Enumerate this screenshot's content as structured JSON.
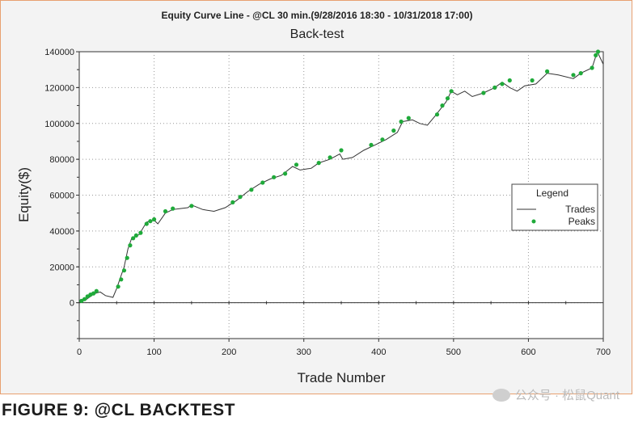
{
  "chart_data": {
    "type": "line",
    "title": "Equity Curve Line - @CL 30 min.(9/28/2016 18:30 - 10/31/2018 17:00)",
    "subtitle": "Back-test",
    "xlabel": "Trade Number",
    "ylabel": "Equity($)",
    "xlim": [
      0,
      700
    ],
    "ylim": [
      -20000,
      140000
    ],
    "x_ticks": [
      "0",
      "100",
      "200",
      "300",
      "400",
      "500",
      "600",
      "700"
    ],
    "y_ticks": [
      "0",
      "20000",
      "40000",
      "60000",
      "80000",
      "100000",
      "120000",
      "140000"
    ],
    "grid": true,
    "legend": {
      "title": "Legend",
      "placement": "right",
      "entries": [
        "Trades",
        "Peaks"
      ]
    },
    "colors": {
      "trades": "#333333",
      "peaks": "#1faa3a"
    },
    "series": [
      {
        "name": "Trades",
        "points": [
          [
            0,
            0
          ],
          [
            10,
            2000
          ],
          [
            20,
            5000
          ],
          [
            28,
            6000
          ],
          [
            35,
            4000
          ],
          [
            45,
            3000
          ],
          [
            50,
            8000
          ],
          [
            55,
            14000
          ],
          [
            60,
            20000
          ],
          [
            65,
            30000
          ],
          [
            70,
            36000
          ],
          [
            80,
            38000
          ],
          [
            90,
            45000
          ],
          [
            100,
            46000
          ],
          [
            105,
            44000
          ],
          [
            115,
            50000
          ],
          [
            125,
            52000
          ],
          [
            135,
            52500
          ],
          [
            145,
            53000
          ],
          [
            150,
            54500
          ],
          [
            165,
            52000
          ],
          [
            180,
            51000
          ],
          [
            195,
            53000
          ],
          [
            210,
            57000
          ],
          [
            225,
            62000
          ],
          [
            240,
            66000
          ],
          [
            255,
            69000
          ],
          [
            270,
            71000
          ],
          [
            285,
            76000
          ],
          [
            295,
            74000
          ],
          [
            310,
            75000
          ],
          [
            320,
            78000
          ],
          [
            335,
            80000
          ],
          [
            348,
            83000
          ],
          [
            352,
            80000
          ],
          [
            365,
            81000
          ],
          [
            380,
            85000
          ],
          [
            395,
            88000
          ],
          [
            410,
            91000
          ],
          [
            425,
            95000
          ],
          [
            432,
            101000
          ],
          [
            445,
            102000
          ],
          [
            455,
            100000
          ],
          [
            465,
            99000
          ],
          [
            475,
            104000
          ],
          [
            490,
            112000
          ],
          [
            497,
            118000
          ],
          [
            505,
            116000
          ],
          [
            515,
            118000
          ],
          [
            525,
            115000
          ],
          [
            540,
            117000
          ],
          [
            555,
            120000
          ],
          [
            565,
            123000
          ],
          [
            575,
            120000
          ],
          [
            585,
            118000
          ],
          [
            595,
            121000
          ],
          [
            610,
            122000
          ],
          [
            625,
            128000
          ],
          [
            640,
            127000
          ],
          [
            660,
            125000
          ],
          [
            670,
            128000
          ],
          [
            685,
            131000
          ],
          [
            692,
            140000
          ],
          [
            700,
            133000
          ]
        ]
      },
      {
        "name": "Peaks",
        "points": [
          [
            3,
            1000
          ],
          [
            7,
            2000
          ],
          [
            11,
            3500
          ],
          [
            15,
            4500
          ],
          [
            19,
            5200
          ],
          [
            23,
            6500
          ],
          [
            52,
            9000
          ],
          [
            56,
            13000
          ],
          [
            60,
            18000
          ],
          [
            64,
            25000
          ],
          [
            68,
            32000
          ],
          [
            72,
            36000
          ],
          [
            76,
            37500
          ],
          [
            82,
            39000
          ],
          [
            90,
            44000
          ],
          [
            95,
            45500
          ],
          [
            100,
            46500
          ],
          [
            115,
            51000
          ],
          [
            125,
            52500
          ],
          [
            150,
            54000
          ],
          [
            205,
            56000
          ],
          [
            215,
            59000
          ],
          [
            230,
            63000
          ],
          [
            245,
            67000
          ],
          [
            260,
            70000
          ],
          [
            275,
            72000
          ],
          [
            290,
            77000
          ],
          [
            320,
            78000
          ],
          [
            335,
            81000
          ],
          [
            350,
            85000
          ],
          [
            390,
            88000
          ],
          [
            405,
            91000
          ],
          [
            420,
            96000
          ],
          [
            430,
            101000
          ],
          [
            440,
            103000
          ],
          [
            478,
            105000
          ],
          [
            485,
            110000
          ],
          [
            492,
            114000
          ],
          [
            497,
            118000
          ],
          [
            540,
            117000
          ],
          [
            555,
            120000
          ],
          [
            565,
            122000
          ],
          [
            575,
            124000
          ],
          [
            605,
            124000
          ],
          [
            625,
            129000
          ],
          [
            660,
            127000
          ],
          [
            670,
            128000
          ],
          [
            685,
            131000
          ],
          [
            690,
            138000
          ],
          [
            693,
            140000
          ]
        ]
      }
    ]
  },
  "caption": "FIGURE 9: @CL BACKTEST",
  "watermark": "公众号 · 松鼠Quant"
}
